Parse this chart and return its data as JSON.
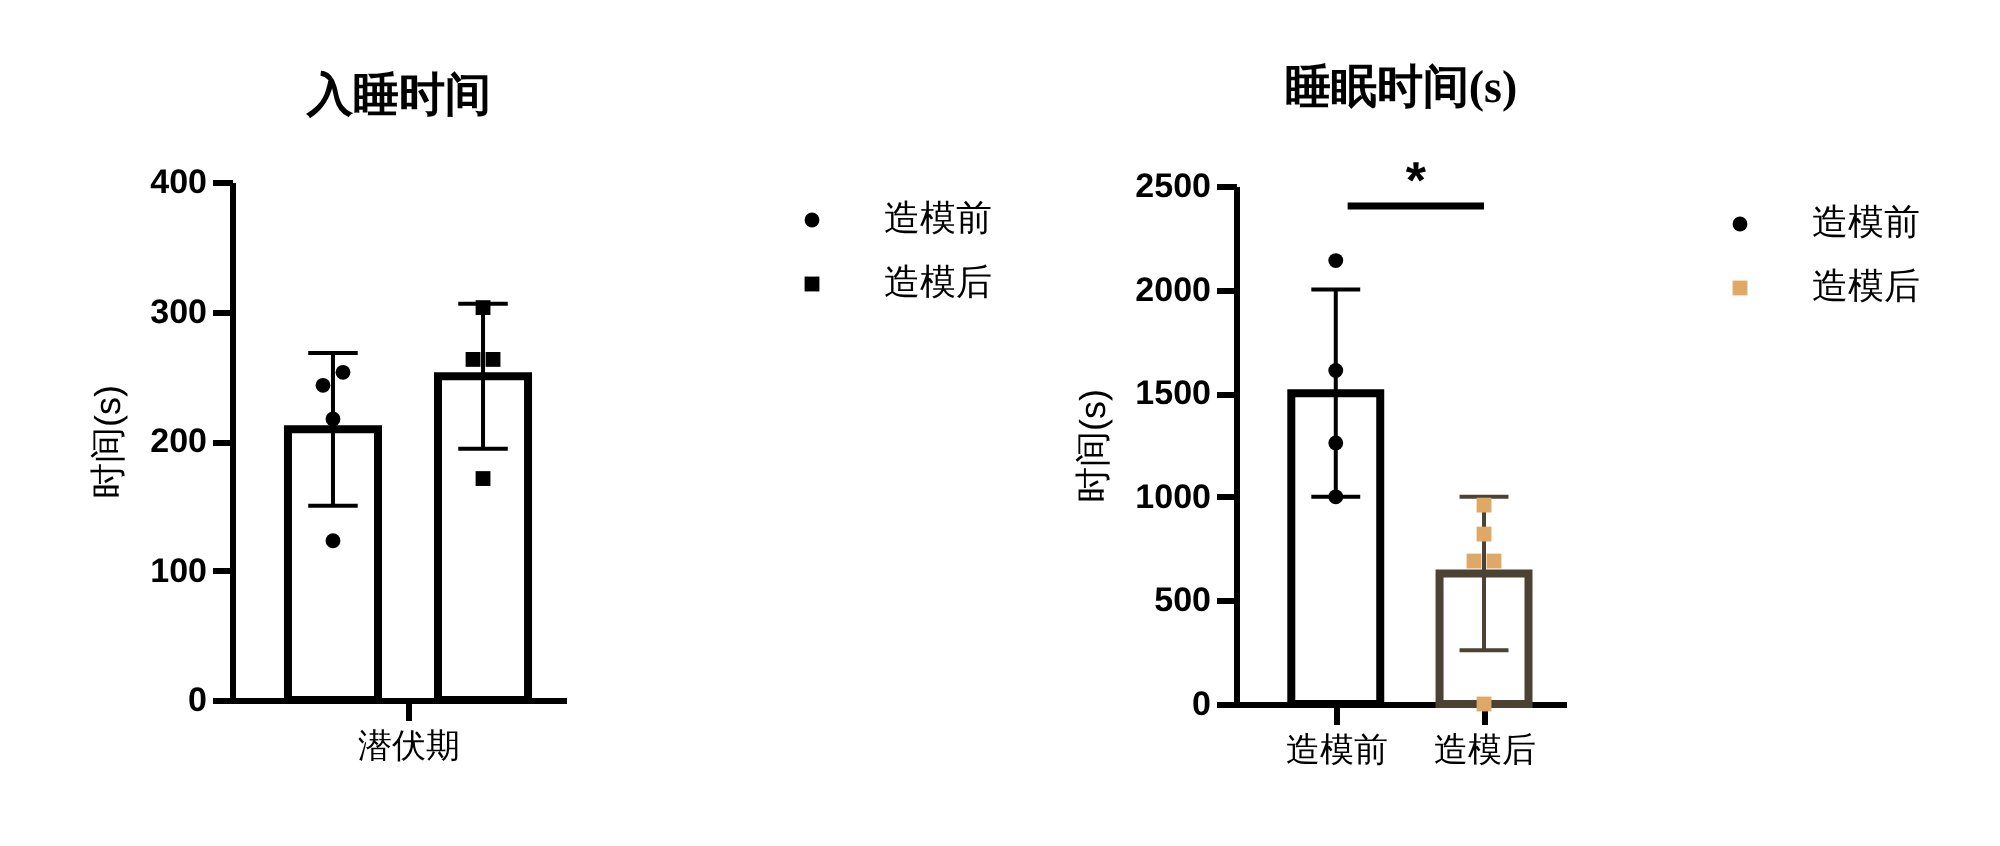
{
  "chart_data": [
    {
      "type": "bar",
      "title": "入睡时间",
      "ylabel": "时间(s)",
      "categories": [
        "潜伏期"
      ],
      "series": [
        {
          "type": "bar",
          "color": "#000000",
          "values": [
            209
          ],
          "errors": [
            [
              150,
              268
            ]
          ]
        },
        {
          "type": "bar",
          "color": "#000000",
          "values": [
            250
          ],
          "errors": [
            [
              194,
              306
            ]
          ]
        },
        {
          "type": "scatter",
          "name": "造模前",
          "color": "#000000",
          "marker": "circle",
          "x": [
            "潜伏期",
            "潜伏期",
            "潜伏期",
            "潜伏期"
          ],
          "values": [
            243,
            253,
            217,
            123
          ]
        },
        {
          "type": "scatter",
          "name": "造模后",
          "color": "#000000",
          "marker": "square",
          "x": [
            "潜伏期",
            "潜伏期",
            "潜伏期",
            "潜伏期"
          ],
          "values": [
            303,
            263,
            263,
            171
          ]
        }
      ],
      "ylim": [
        0,
        400
      ],
      "yticks": [
        0,
        100,
        200,
        300,
        400
      ],
      "legend": "top right"
    },
    {
      "type": "bar",
      "title": "睡眠时间(s)",
      "ylabel": "时间(s)",
      "categories": [
        "造模前",
        "造模后"
      ],
      "series": [
        {
          "type": "bar",
          "colors": [
            "#000000",
            "#4b4234"
          ],
          "values": [
            1500,
            630
          ],
          "errors": [
            [
              1000,
              2000
            ],
            [
              260,
              1000
            ]
          ]
        },
        {
          "type": "scatter",
          "name": "造模前",
          "color": "#000000",
          "marker": "circle",
          "x": [
            "造模前",
            "造模前",
            "造模前",
            "造模前"
          ],
          "values": [
            2140,
            1610,
            1260,
            1000
          ]
        },
        {
          "type": "scatter",
          "name": "造模后",
          "color": "#dfa866",
          "marker": "square",
          "x": [
            "造模后",
            "造模后",
            "造模后",
            "造模后",
            "造模后"
          ],
          "values": [
            960,
            820,
            690,
            690,
            0
          ]
        }
      ],
      "ylim": [
        0,
        2500
      ],
      "yticks": [
        0,
        500,
        1000,
        1500,
        2000,
        2500
      ],
      "legend": "top right",
      "annotations": [
        "*"
      ]
    }
  ]
}
